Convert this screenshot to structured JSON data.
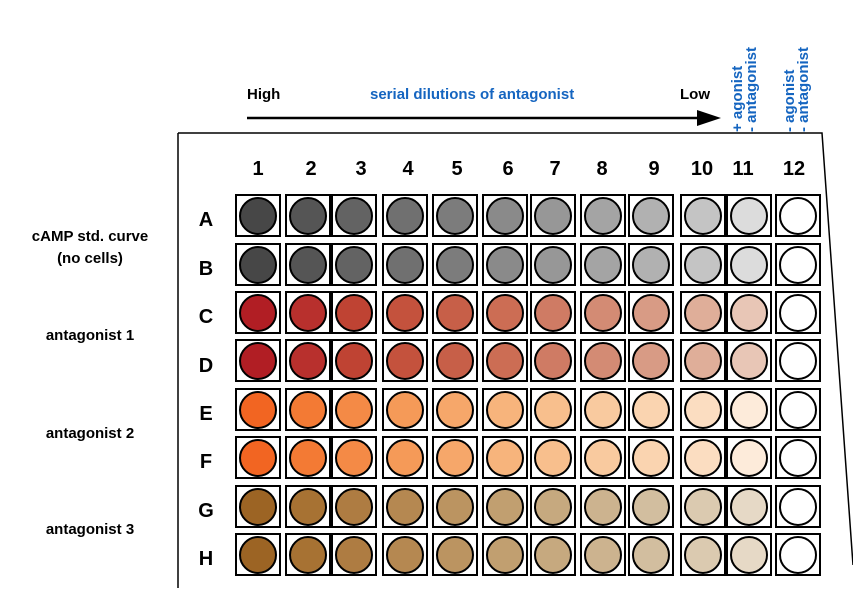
{
  "header": {
    "high": "High",
    "serial": "serial dilutions of antagonist",
    "low": "Low",
    "col11_line1": "+ agonist",
    "col11_line2": "- antagonist",
    "col12_line1": "- agonist",
    "col12_line2": "- antagonist"
  },
  "columns": [
    "1",
    "2",
    "3",
    "4",
    "5",
    "6",
    "7",
    "8",
    "9",
    "10",
    "11",
    "12"
  ],
  "rows": [
    "A",
    "B",
    "C",
    "D",
    "E",
    "F",
    "G",
    "H"
  ],
  "side_labels": {
    "camp_line1": "cAMP std. curve",
    "camp_line2": "(no cells)",
    "antagonist1": "antagonist 1",
    "antagonist2": "antagonist 2",
    "antagonist3": "antagonist 3"
  },
  "well_colors": {
    "gray": [
      "#474747",
      "#555555",
      "#636363",
      "#707070",
      "#7c7c7c",
      "#8a8a8a",
      "#979797",
      "#a4a4a4",
      "#b1b1b1",
      "#c4c4c4",
      "#dcdcdc",
      "#ffffff"
    ],
    "red": [
      "#b11e24",
      "#b8302d",
      "#bf4333",
      "#c4523d",
      "#c75f48",
      "#cc6d54",
      "#cf7b64",
      "#d38b74",
      "#d89b85",
      "#dfae99",
      "#e8c6b6",
      "#ffffff"
    ],
    "orange": [
      "#f26522",
      "#f37a34",
      "#f48a46",
      "#f59a58",
      "#f6a76a",
      "#f7b47c",
      "#f8bf8d",
      "#f9ca9f",
      "#fad4b0",
      "#fbddc1",
      "#fdebda",
      "#ffffff"
    ],
    "brown": [
      "#9c6424",
      "#a77233",
      "#ae7c42",
      "#b58851",
      "#bb9461",
      "#c19f70",
      "#c6a97f",
      "#ccb38f",
      "#d2be9f",
      "#dbcab0",
      "#e6d9c6",
      "#ffffff"
    ]
  },
  "row_color_groups": [
    "gray",
    "gray",
    "red",
    "red",
    "orange",
    "orange",
    "brown",
    "brown"
  ]
}
